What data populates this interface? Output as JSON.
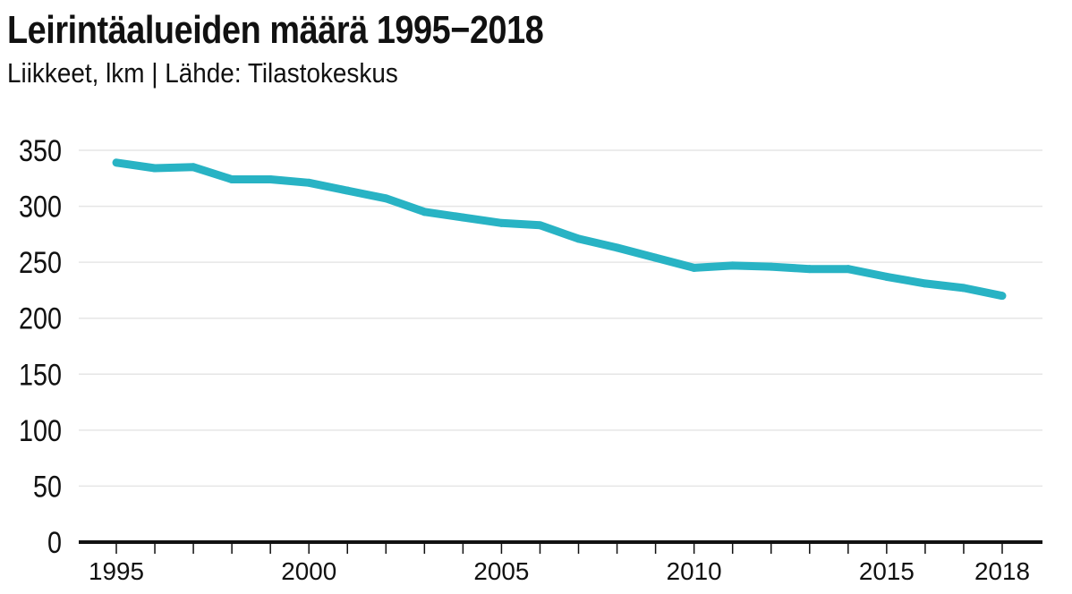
{
  "header": {
    "title": "Leirintäalueiden määrä 1995−2018",
    "subtitle": "Liikkeet, lkm | Lähde: Tilastokeskus"
  },
  "colors": {
    "line": "#28b3c4",
    "grid": "#e6e6e6",
    "axis": "#111111"
  },
  "chart_data": {
    "type": "line",
    "title": "Leirintäalueiden määrä 1995−2018",
    "subtitle": "Liikkeet, lkm | Lähde: Tilastokeskus",
    "xlabel": "",
    "ylabel": "",
    "x": [
      1995,
      1996,
      1997,
      1998,
      1999,
      2000,
      2001,
      2002,
      2003,
      2004,
      2005,
      2006,
      2007,
      2008,
      2009,
      2010,
      2011,
      2012,
      2013,
      2014,
      2015,
      2016,
      2017,
      2018
    ],
    "series": [
      {
        "values": [
          339,
          334,
          335,
          324,
          324,
          321,
          314,
          307,
          295,
          290,
          285,
          283,
          271,
          263,
          254,
          245,
          247,
          246,
          244,
          244,
          237,
          231,
          227,
          220
        ]
      }
    ],
    "xlim": [
      1995,
      2018
    ],
    "ylim": [
      0,
      350
    ],
    "x_ticks": [
      1995,
      2000,
      2005,
      2010,
      2015,
      2018
    ],
    "y_ticks": [
      0,
      50,
      100,
      150,
      200,
      250,
      300,
      350
    ],
    "grid": true,
    "legend": "none"
  }
}
